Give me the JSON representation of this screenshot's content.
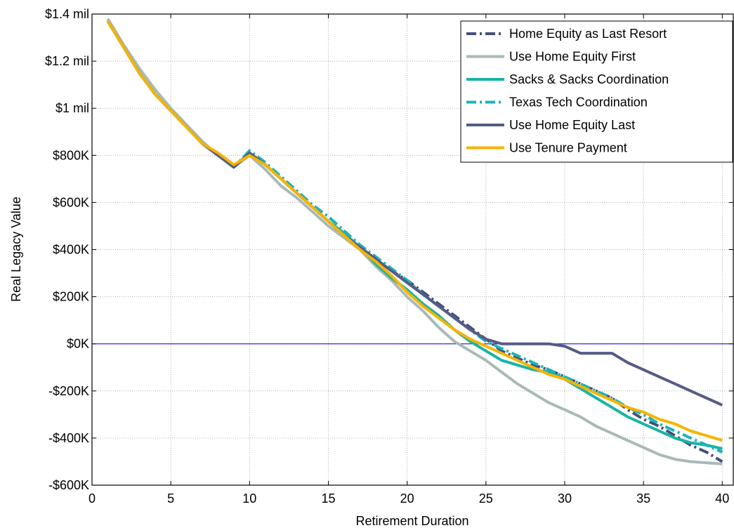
{
  "chart_data": {
    "type": "line",
    "xlabel": "Retirement Duration",
    "ylabel": "Real Legacy Value",
    "xlim": [
      0,
      40.7
    ],
    "ylim": [
      -600000,
      1400000
    ],
    "x_ticks": [
      0,
      5,
      10,
      15,
      20,
      25,
      30,
      35,
      40
    ],
    "x_tick_labels": [
      "0",
      "5",
      "10",
      "15",
      "20",
      "25",
      "30",
      "35",
      "40"
    ],
    "y_ticks": [
      -600000,
      -400000,
      -200000,
      0,
      200000,
      400000,
      600000,
      800000,
      1000000,
      1200000,
      1400000
    ],
    "y_tick_labels": [
      "-$600K",
      "-$400K",
      "-$200K",
      "$0K",
      "$200K",
      "$400K",
      "$600K",
      "$800K",
      "$1 mil",
      "$1.2 mil",
      "$1.4 mil"
    ],
    "grid": true,
    "legend_position": "top-right",
    "zero_line_color": "#0000cc",
    "x": [
      1,
      2,
      3,
      4,
      5,
      6,
      7,
      8,
      9,
      10,
      11,
      12,
      13,
      14,
      15,
      16,
      17,
      18,
      19,
      20,
      21,
      22,
      23,
      24,
      25,
      26,
      27,
      28,
      29,
      30,
      31,
      32,
      33,
      34,
      35,
      36,
      37,
      38,
      39,
      40
    ],
    "series": [
      {
        "name": "Home Equity as Last Resort",
        "color": "#44507a",
        "dash": "dashdot",
        "values": [
          1370000,
          1260000,
          1150000,
          1060000,
          990000,
          920000,
          850000,
          800000,
          750000,
          810000,
          760000,
          700000,
          640000,
          580000,
          520000,
          460000,
          410000,
          360000,
          310000,
          270000,
          220000,
          170000,
          120000,
          70000,
          20000,
          -30000,
          -60000,
          -90000,
          -110000,
          -140000,
          -170000,
          -200000,
          -230000,
          -280000,
          -320000,
          -350000,
          -390000,
          -430000,
          -460000,
          -500000
        ]
      },
      {
        "name": "Use Home Equity First",
        "color": "#a9bab6",
        "dash": "solid",
        "values": [
          1380000,
          1270000,
          1170000,
          1080000,
          1000000,
          930000,
          860000,
          800000,
          750000,
          800000,
          740000,
          670000,
          620000,
          560000,
          500000,
          450000,
          400000,
          330000,
          270000,
          200000,
          140000,
          70000,
          10000,
          -30000,
          -70000,
          -120000,
          -170000,
          -210000,
          -250000,
          -280000,
          -310000,
          -350000,
          -380000,
          -410000,
          -440000,
          -470000,
          -490000,
          -500000,
          -505000,
          -510000
        ]
      },
      {
        "name": "Sacks & Sacks Coordination",
        "color": "#1ab3a6",
        "dash": "solid",
        "values": [
          1370000,
          1260000,
          1150000,
          1060000,
          990000,
          920000,
          850000,
          800000,
          750000,
          810000,
          760000,
          700000,
          640000,
          580000,
          520000,
          470000,
          410000,
          340000,
          280000,
          230000,
          170000,
          120000,
          60000,
          10000,
          -30000,
          -70000,
          -90000,
          -110000,
          -120000,
          -150000,
          -190000,
          -230000,
          -270000,
          -310000,
          -340000,
          -370000,
          -400000,
          -420000,
          -430000,
          -445000
        ]
      },
      {
        "name": "Texas Tech Coordination",
        "color": "#1ab3bd",
        "dash": "dashdot",
        "values": [
          1370000,
          1260000,
          1150000,
          1060000,
          990000,
          920000,
          850000,
          800000,
          750000,
          820000,
          770000,
          710000,
          650000,
          590000,
          540000,
          480000,
          420000,
          370000,
          320000,
          270000,
          210000,
          160000,
          110000,
          60000,
          10000,
          -20000,
          -50000,
          -80000,
          -110000,
          -140000,
          -170000,
          -200000,
          -230000,
          -270000,
          -300000,
          -340000,
          -370000,
          -400000,
          -430000,
          -460000
        ]
      },
      {
        "name": "Use Home Equity Last",
        "color": "#555b85",
        "dash": "solid",
        "values": [
          1370000,
          1260000,
          1150000,
          1060000,
          990000,
          920000,
          850000,
          800000,
          750000,
          810000,
          760000,
          700000,
          640000,
          580000,
          520000,
          460000,
          410000,
          360000,
          310000,
          260000,
          210000,
          160000,
          110000,
          60000,
          20000,
          0,
          0,
          0,
          0,
          -10000,
          -40000,
          -40000,
          -40000,
          -80000,
          -110000,
          -140000,
          -170000,
          -200000,
          -230000,
          -260000
        ]
      },
      {
        "name": "Use Tenure Payment",
        "color": "#f5b400",
        "dash": "solid",
        "values": [
          1370000,
          1260000,
          1150000,
          1060000,
          990000,
          920000,
          850000,
          810000,
          760000,
          800000,
          760000,
          700000,
          640000,
          580000,
          520000,
          460000,
          400000,
          350000,
          290000,
          220000,
          160000,
          110000,
          60000,
          20000,
          -10000,
          -40000,
          -70000,
          -100000,
          -130000,
          -150000,
          -180000,
          -210000,
          -240000,
          -270000,
          -290000,
          -320000,
          -340000,
          -370000,
          -390000,
          -410000
        ]
      }
    ]
  }
}
